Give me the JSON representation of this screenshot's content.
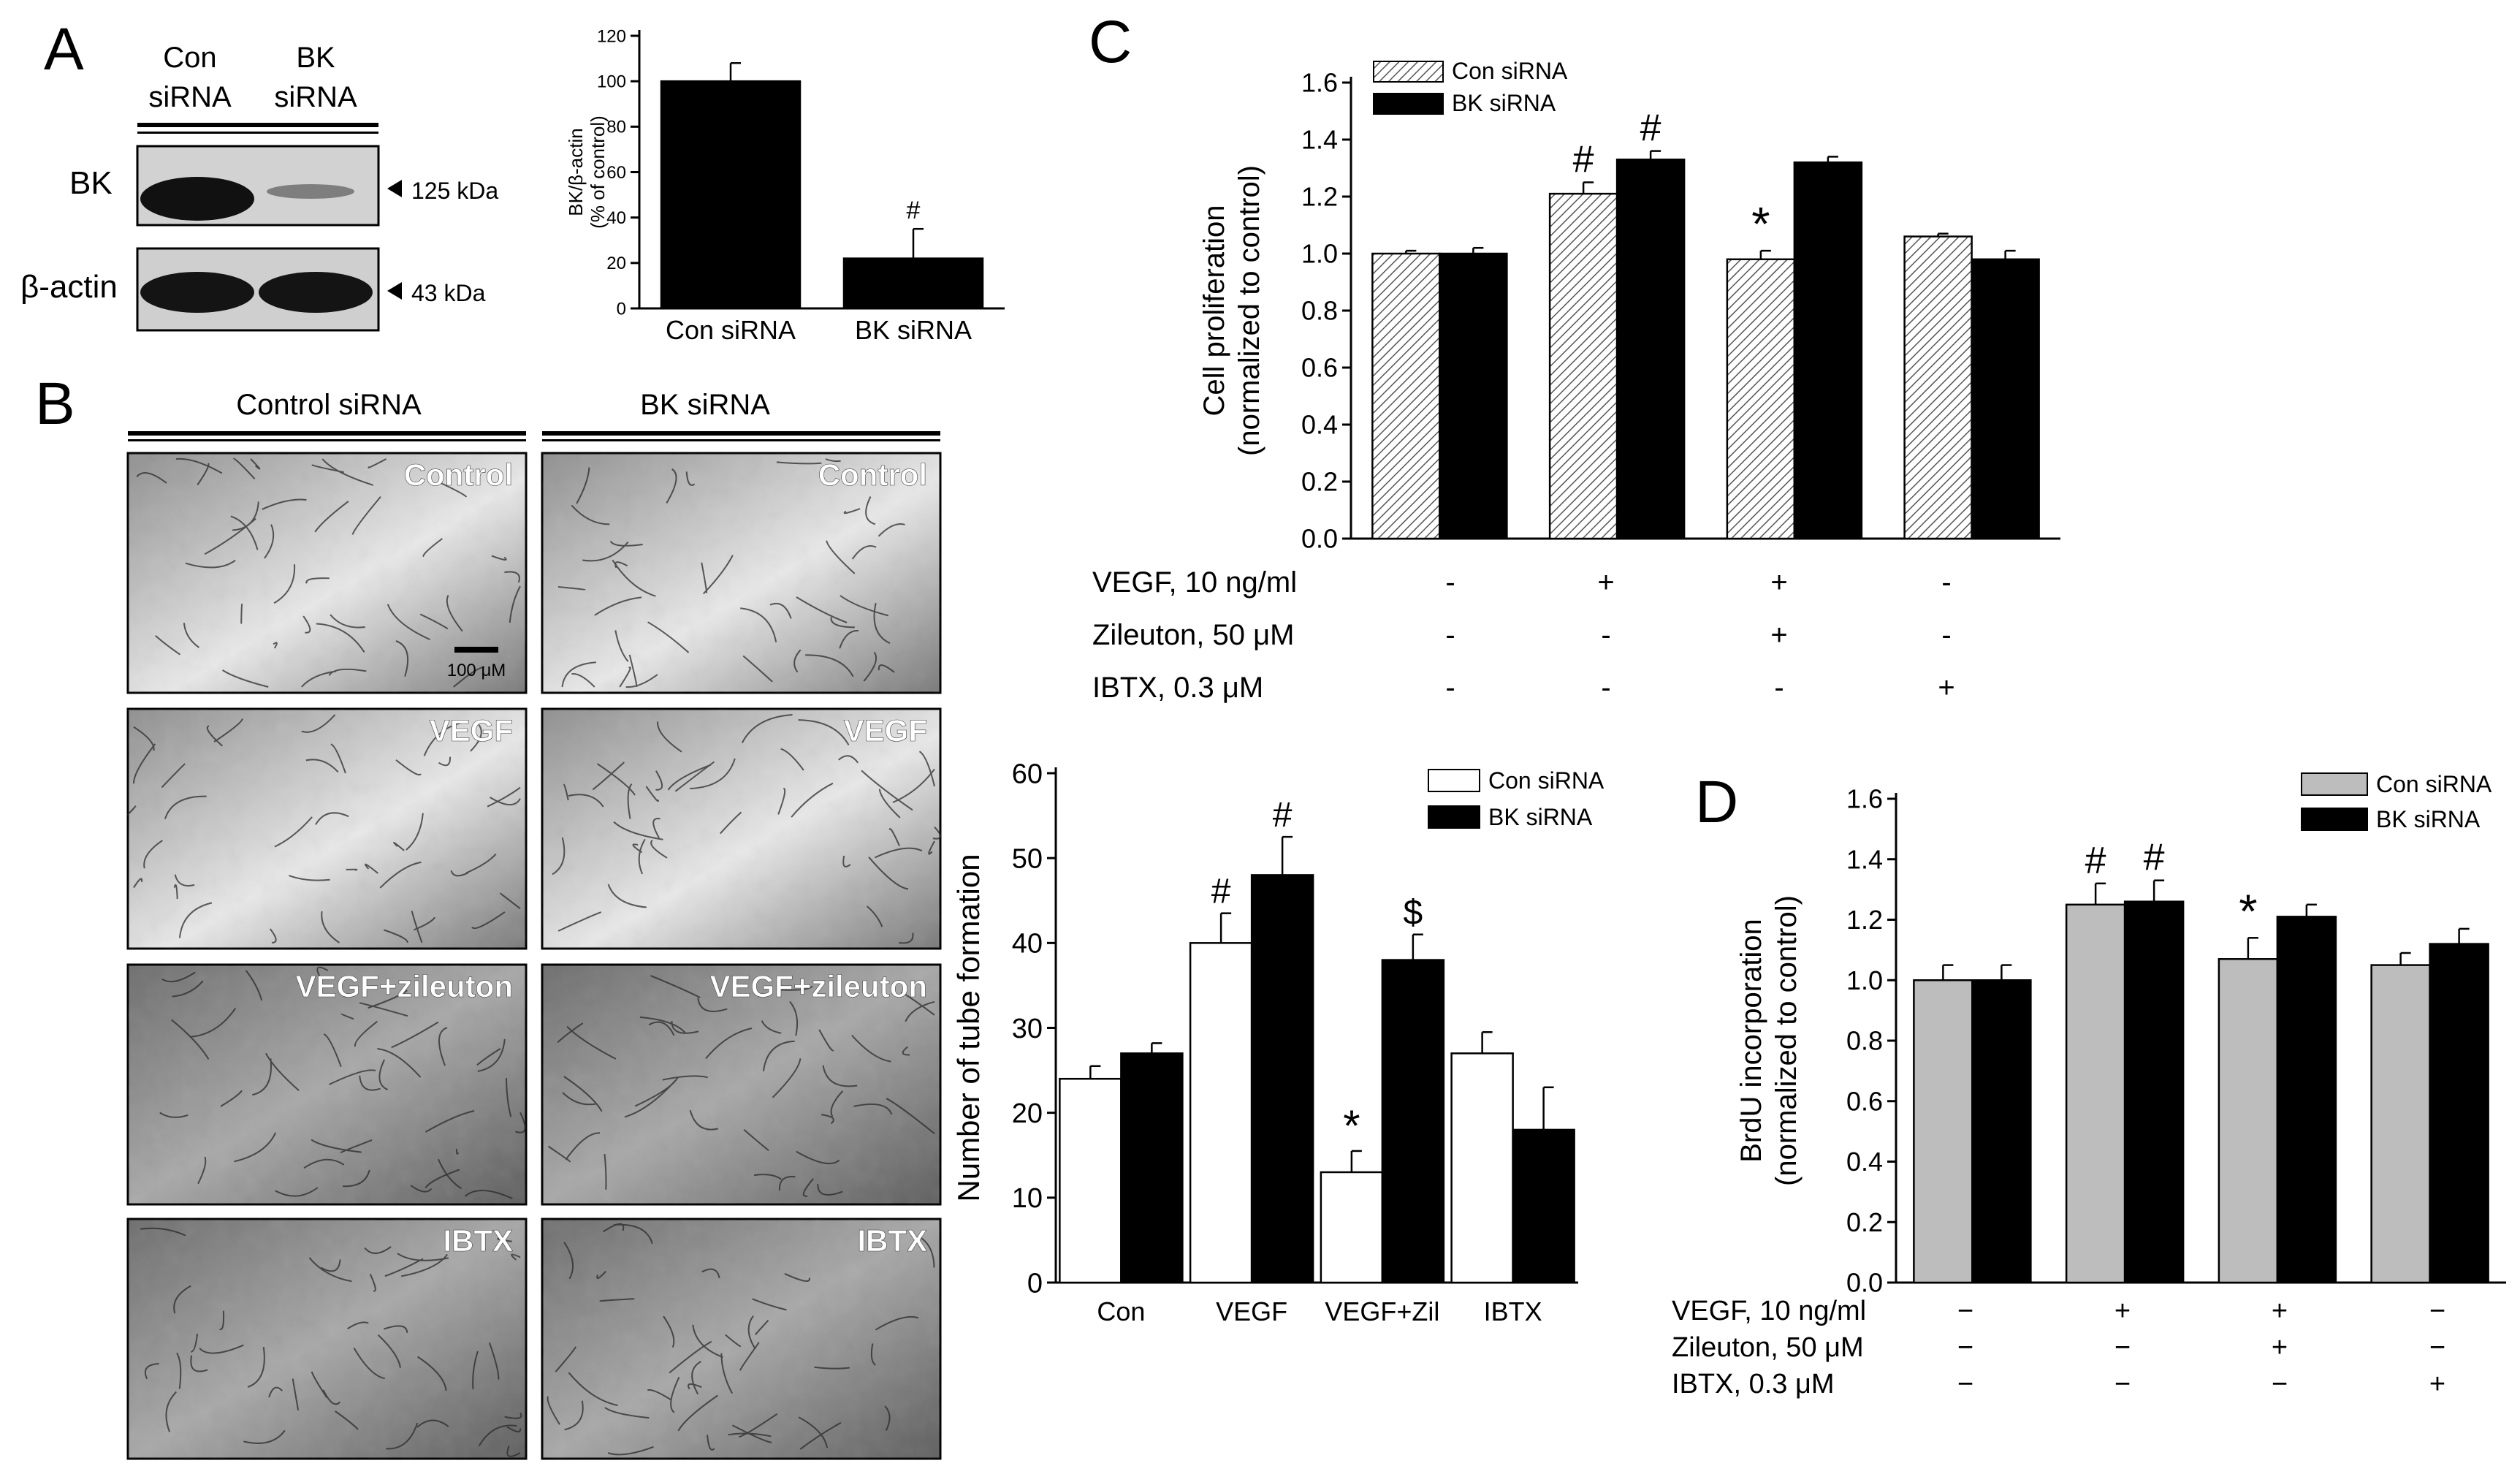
{
  "panel_letters": {
    "a": "A",
    "b": "B",
    "c": "C",
    "d": "D"
  },
  "western": {
    "lane_labels": [
      [
        "Con",
        "siRNA"
      ],
      [
        "BK",
        "siRNA"
      ]
    ],
    "rows": [
      {
        "label": "BK",
        "size": "125 kDa"
      },
      {
        "label": "β-actin",
        "size": "43 kDa"
      }
    ]
  },
  "micrographs": {
    "col_headers": [
      "Control siRNA",
      "BK siRNA"
    ],
    "row_labels": [
      "Control",
      "VEGF",
      "VEGF+zileuton",
      "IBTX"
    ],
    "scale_bar_label": "100 μM"
  },
  "treatment_table": {
    "rows": [
      {
        "label": "VEGF, 10 ng/ml",
        "values": [
          "-",
          "+",
          "+",
          "-"
        ]
      },
      {
        "label": "Zileuton, 50 μM",
        "values": [
          "-",
          "-",
          "+",
          "-"
        ]
      },
      {
        "label": "IBTX,    0.3 μM",
        "values": [
          "-",
          "-",
          "-",
          "+"
        ]
      }
    ]
  },
  "treatment_table_d": {
    "rows": [
      {
        "label": "VEGF, 10 ng/ml",
        "values": [
          "−",
          "+",
          "+",
          "−"
        ]
      },
      {
        "label": "Zileuton, 50 μM",
        "values": [
          "−",
          "−",
          "+",
          "−"
        ]
      },
      {
        "label": "IBTX,    0.3 μM",
        "values": [
          "−",
          "−",
          "−",
          "+"
        ]
      }
    ]
  },
  "chart_data": [
    {
      "id": "A",
      "type": "bar",
      "categories": [
        "Con siRNA",
        "BK siRNA"
      ],
      "values": [
        100,
        22
      ],
      "errors": [
        8,
        13
      ],
      "annotations": [
        "",
        "#"
      ],
      "ylabel_lines": [
        "BK/β-actin",
        "(% of control)"
      ],
      "yticks": [
        0,
        20,
        40,
        60,
        80,
        100,
        120
      ],
      "ylim": [
        0,
        120
      ],
      "colors": [
        "#000000",
        "#000000"
      ]
    },
    {
      "id": "C",
      "type": "bar",
      "categories": [
        "1",
        "2",
        "3",
        "4"
      ],
      "series": [
        {
          "name": "Con siRNA",
          "values": [
            1.0,
            1.21,
            0.98,
            1.06
          ],
          "errors": [
            0.01,
            0.04,
            0.03,
            0.01
          ],
          "annotations": [
            "",
            "#",
            "*",
            ""
          ],
          "fill": "hatch"
        },
        {
          "name": "BK siRNA",
          "values": [
            1.0,
            1.33,
            1.32,
            0.98
          ],
          "errors": [
            0.02,
            0.03,
            0.02,
            0.03
          ],
          "annotations": [
            "",
            "#",
            "",
            ""
          ],
          "fill": "#000000"
        }
      ],
      "ylabel_lines": [
        "Cell proliferation",
        "(normalized to control)"
      ],
      "yticks": [
        "0.0",
        "0.2",
        "0.4",
        "0.6",
        "0.8",
        "1.0",
        "1.2",
        "1.4",
        "1.6"
      ],
      "ylim": [
        0,
        1.6
      ],
      "legend": "top-left"
    },
    {
      "id": "tube",
      "type": "bar",
      "categories": [
        "Con",
        "VEGF",
        "VEGF+Zil",
        "IBTX"
      ],
      "series": [
        {
          "name": "Con siRNA",
          "values": [
            24,
            40,
            13,
            27
          ],
          "errors": [
            1.5,
            3.5,
            2.5,
            2.5
          ],
          "annotations": [
            "",
            "#",
            "*",
            ""
          ],
          "fill": "#ffffff"
        },
        {
          "name": "BK siRNA",
          "values": [
            27,
            48,
            38,
            18
          ],
          "errors": [
            1.2,
            4.5,
            3,
            5
          ],
          "annotations": [
            "",
            "#",
            "$",
            ""
          ],
          "fill": "#000000"
        }
      ],
      "ylabel_lines": [
        "Number of tube formation"
      ],
      "yticks": [
        "0",
        "10",
        "20",
        "30",
        "40",
        "50",
        "60"
      ],
      "ylim": [
        0,
        60
      ],
      "legend": "top-right"
    },
    {
      "id": "D",
      "type": "bar",
      "categories": [
        "1",
        "2",
        "3",
        "4"
      ],
      "series": [
        {
          "name": "Con siRNA",
          "values": [
            1.0,
            1.25,
            1.07,
            1.05
          ],
          "errors": [
            0.05,
            0.07,
            0.07,
            0.04
          ],
          "annotations": [
            "",
            "#",
            "*",
            ""
          ],
          "fill": "#bdbdbd"
        },
        {
          "name": "BK siRNA",
          "values": [
            1.0,
            1.26,
            1.21,
            1.12
          ],
          "errors": [
            0.05,
            0.07,
            0.04,
            0.05
          ],
          "annotations": [
            "",
            "#",
            "",
            ""
          ],
          "fill": "#000000"
        }
      ],
      "ylabel_lines": [
        "BrdU incorporation",
        "(normalized to control)"
      ],
      "yticks": [
        "0.0",
        "0.2",
        "0.4",
        "0.6",
        "0.8",
        "1.0",
        "1.2",
        "1.4",
        "1.6"
      ],
      "ylim": [
        0,
        1.6
      ],
      "legend": "top-right"
    }
  ]
}
